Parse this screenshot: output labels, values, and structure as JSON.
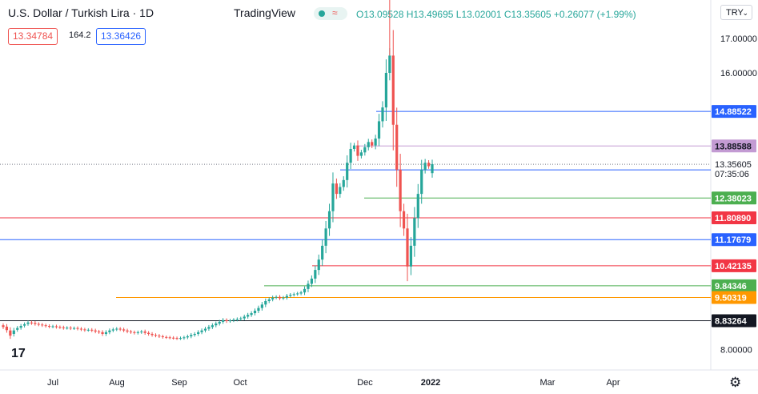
{
  "header": {
    "symbol_title": "U.S. Dollar / Turkish Lira · 1D",
    "brand": "TradingView",
    "ohlc": "O13.09528 H13.49695 L13.02001 C13.35605 +0.26077 (+1.99%)",
    "bid": "13.34784",
    "spread": "164.2",
    "ask": "13.36426",
    "currency": "TRY"
  },
  "colors": {
    "up": "#26a69a",
    "down": "#ef5350",
    "blue": "#2962ff",
    "red": "#f23645",
    "green": "#4caf50",
    "orange": "#ff9800",
    "black": "#131722",
    "violet": "#c39bd3"
  },
  "chart_data": {
    "type": "candlestick",
    "ylim": [
      7.5,
      18.2
    ],
    "x_ticks": [
      "Jul",
      "Aug",
      "Sep",
      "Oct",
      "Dec",
      "2022",
      "Mar",
      "Apr"
    ],
    "y_ticks": [
      "8.00000",
      "16.00000",
      "17.00000"
    ],
    "last_price": {
      "value": 13.35605,
      "label": "13.35605",
      "countdown": "07:35:06"
    },
    "levels": [
      {
        "value": 14.88522,
        "label": "14.88522",
        "color": "blue"
      },
      {
        "value": 13.88588,
        "label": "13.88588",
        "color": "violet"
      },
      {
        "value": 13.19476,
        "label": "13.19476",
        "color": "blue"
      },
      {
        "value": 12.38023,
        "label": "12.38023",
        "color": "green"
      },
      {
        "value": 11.8089,
        "label": "11.80890",
        "color": "red"
      },
      {
        "value": 11.17679,
        "label": "11.17679",
        "color": "blue"
      },
      {
        "value": 10.42135,
        "label": "10.42135",
        "color": "red"
      },
      {
        "value": 9.84346,
        "label": "9.84346",
        "color": "green"
      },
      {
        "value": 9.50319,
        "label": "9.50319",
        "color": "orange"
      },
      {
        "value": 8.83264,
        "label": "8.83264",
        "color": "black"
      }
    ],
    "series_close": [
      8.65,
      8.56,
      8.4,
      8.55,
      8.62,
      8.68,
      8.73,
      8.78,
      8.76,
      8.74,
      8.72,
      8.7,
      8.68,
      8.66,
      8.67,
      8.65,
      8.64,
      8.62,
      8.63,
      8.61,
      8.62,
      8.6,
      8.58,
      8.56,
      8.57,
      8.55,
      8.52,
      8.5,
      8.45,
      8.5,
      8.55,
      8.58,
      8.6,
      8.58,
      8.55,
      8.52,
      8.5,
      8.48,
      8.5,
      8.52,
      8.48,
      8.45,
      8.42,
      8.4,
      8.38,
      8.36,
      8.35,
      8.34,
      8.33,
      8.32,
      8.33,
      8.35,
      8.38,
      8.42,
      8.45,
      8.5,
      8.55,
      8.6,
      8.65,
      8.7,
      8.75,
      8.8,
      8.85,
      8.82,
      8.84,
      8.86,
      8.88,
      8.9,
      8.95,
      9.0,
      9.05,
      9.12,
      9.2,
      9.3,
      9.4,
      9.45,
      9.5,
      9.52,
      9.48,
      9.5,
      9.55,
      9.58,
      9.6,
      9.62,
      9.65,
      9.75,
      9.9,
      10.05,
      10.3,
      10.6,
      11.0,
      11.5,
      12.0,
      12.8,
      12.5,
      12.7,
      12.9,
      13.4,
      13.8,
      13.9,
      13.6,
      13.7,
      13.85,
      14.0,
      13.9,
      14.1,
      14.6,
      15.0,
      16.0,
      16.5,
      14.5,
      13.2,
      12.0,
      11.5,
      10.4,
      11.0,
      11.8,
      12.5,
      13.2,
      13.4,
      13.3,
      13.36
    ],
    "series_open_delta": [
      0.05,
      0.1,
      0.15,
      -0.1,
      -0.05,
      -0.05,
      -0.04,
      -0.04,
      0.02,
      0.03,
      0.02,
      0.02,
      0.02,
      0.02,
      -0.01,
      0.02,
      0.01,
      0.02,
      -0.01,
      0.02,
      -0.01,
      0.02,
      0.02,
      0.02,
      -0.01,
      0.02,
      0.03,
      0.02,
      0.05,
      -0.05,
      -0.05,
      -0.03,
      -0.02,
      0.02,
      0.03,
      0.03,
      0.02,
      0.02,
      -0.02,
      -0.02,
      0.04,
      0.03,
      0.03,
      0.02,
      0.02,
      0.02,
      0.01,
      0.01,
      0.01,
      0.01,
      -0.01,
      -0.02,
      -0.03,
      -0.04,
      -0.03,
      -0.05,
      -0.05,
      -0.05,
      -0.05,
      -0.05,
      -0.05,
      -0.05,
      -0.05,
      0.03,
      -0.02,
      -0.02,
      -0.02,
      -0.02,
      -0.05,
      -0.05,
      -0.05,
      -0.07,
      -0.08,
      -0.1,
      -0.1,
      -0.05,
      -0.05,
      -0.02,
      0.04,
      -0.02,
      -0.05,
      -0.03,
      -0.02,
      -0.02,
      -0.03,
      -0.1,
      -0.15,
      -0.15,
      -0.25,
      -0.3,
      -0.4,
      -0.5,
      -0.5,
      -0.8,
      0.3,
      -0.2,
      -0.2,
      -0.5,
      -0.4,
      -0.1,
      0.3,
      -0.1,
      -0.15,
      -0.15,
      0.1,
      -0.2,
      -0.5,
      -0.4,
      -1.0,
      -0.5,
      2.0,
      1.3,
      1.2,
      0.5,
      1.1,
      -0.6,
      -0.8,
      -0.7,
      -0.7,
      -0.2,
      0.1,
      -0.26
    ]
  }
}
